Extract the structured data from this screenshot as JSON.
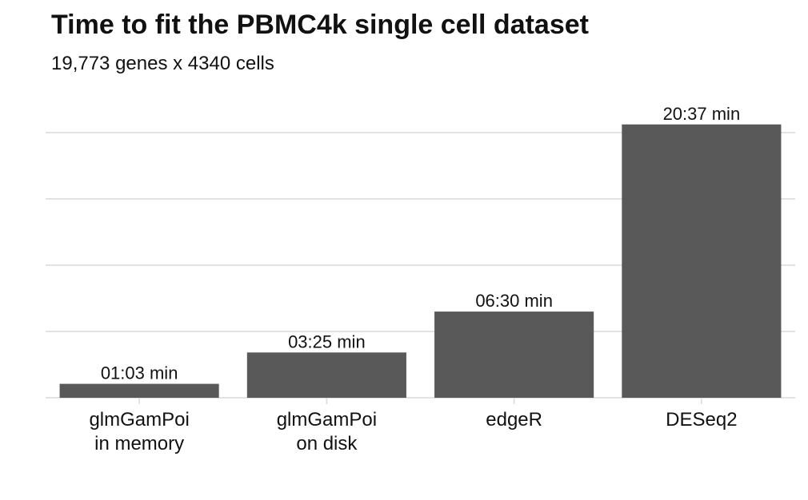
{
  "chart_data": {
    "type": "bar",
    "title": "Time to fit the PBMC4k single cell dataset",
    "subtitle": "19,773 genes x 4340 cells",
    "xlabel": "",
    "ylabel": "",
    "categories": [
      [
        "glmGamPoi",
        "in memory"
      ],
      [
        "glmGamPoi",
        "on disk"
      ],
      [
        "edgeR"
      ],
      [
        "DESeq2"
      ]
    ],
    "values_seconds": [
      63,
      205,
      390,
      1237
    ],
    "data_labels": [
      "01:03 min",
      "03:25 min",
      "06:30 min",
      "20:37 min"
    ],
    "ylim": [
      0,
      1250
    ],
    "y_gridlines": [
      0,
      300,
      600,
      900,
      1200
    ],
    "y_tick_labels_shown": false,
    "bar_color": "#595959",
    "grid_color": "#d9d9d9",
    "grid": true,
    "legend": "none"
  }
}
